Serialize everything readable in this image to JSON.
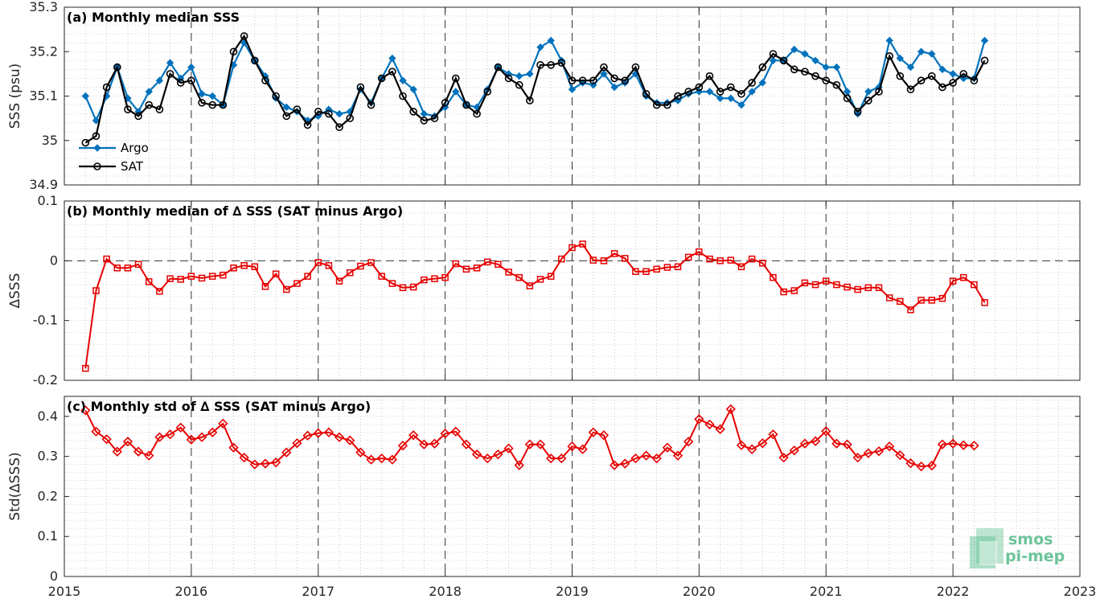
{
  "watermark": {
    "line1": "smos",
    "line2": "pi-mep",
    "color": "#6dc49a"
  },
  "x_axis": {
    "ticks": [
      2015,
      2016,
      2017,
      2018,
      2019,
      2020,
      2021,
      2022,
      2023
    ],
    "range": [
      2015,
      2023
    ]
  },
  "chart_data": [
    {
      "type": "line",
      "title": "(a) Monthly median SSS",
      "ylabel": "SSS (psu)",
      "ylim": [
        34.9,
        35.3
      ],
      "yticks": [
        34.9,
        35,
        35.1,
        35.2,
        35.3
      ],
      "ytick_labels": [
        "34.9",
        "35",
        "35.1",
        "35.2",
        "35.3"
      ],
      "zero_line": false,
      "legend": {
        "placement": "bottom-left",
        "entries": [
          "Argo",
          "SAT"
        ]
      },
      "grid": "dotted",
      "x_start": "2015-03",
      "x_step": "1 month",
      "series": [
        {
          "name": "Argo",
          "color": "#0072bd",
          "marker": "diamond-filled",
          "values": [
            35.1,
            35.045,
            35.1,
            35.165,
            35.095,
            35.065,
            35.11,
            35.135,
            35.175,
            35.14,
            35.165,
            35.105,
            35.1,
            35.08,
            35.17,
            35.22,
            35.18,
            35.145,
            35.095,
            35.075,
            35.065,
            35.045,
            35.055,
            35.07,
            35.06,
            35.065,
            35.115,
            35.085,
            35.14,
            35.185,
            35.135,
            35.115,
            35.06,
            35.055,
            35.075,
            35.11,
            35.08,
            35.075,
            35.115,
            35.165,
            35.15,
            35.145,
            35.15,
            35.21,
            35.225,
            35.18,
            35.115,
            35.13,
            35.125,
            35.15,
            35.12,
            35.13,
            35.15,
            35.1,
            35.085,
            35.085,
            35.09,
            35.105,
            35.11,
            35.11,
            35.095,
            35.095,
            35.08,
            35.11,
            35.13,
            35.18,
            35.18,
            35.205,
            35.195,
            35.18,
            35.165,
            35.165,
            35.11,
            35.06,
            35.11,
            35.12,
            35.225,
            35.185,
            35.165,
            35.2,
            35.195,
            35.16,
            35.15,
            35.14,
            35.14,
            35.225
          ]
        },
        {
          "name": "SAT",
          "color": "#000000",
          "marker": "circle-open",
          "values": [
            34.995,
            35.01,
            35.12,
            35.165,
            35.07,
            35.055,
            35.08,
            35.07,
            35.15,
            35.13,
            35.135,
            35.085,
            35.08,
            35.08,
            35.2,
            35.235,
            35.18,
            35.135,
            35.1,
            35.055,
            35.07,
            35.035,
            35.065,
            35.06,
            35.03,
            35.05,
            35.12,
            35.08,
            35.14,
            35.155,
            35.1,
            35.065,
            35.045,
            35.05,
            35.085,
            35.14,
            35.08,
            35.06,
            35.11,
            35.165,
            35.14,
            35.125,
            35.09,
            35.17,
            35.17,
            35.175,
            35.135,
            35.135,
            35.135,
            35.165,
            35.14,
            35.135,
            35.165,
            35.105,
            35.08,
            35.08,
            35.1,
            35.11,
            35.12,
            35.145,
            35.11,
            35.12,
            35.105,
            35.13,
            35.165,
            35.195,
            35.18,
            35.16,
            35.155,
            35.145,
            35.135,
            35.125,
            35.095,
            35.065,
            35.09,
            35.11,
            35.19,
            35.145,
            35.115,
            35.135,
            35.145,
            35.12,
            35.13,
            35.15,
            35.135,
            35.18
          ]
        }
      ]
    },
    {
      "type": "line",
      "title": "(b) Monthly median of ∆ SSS (SAT minus Argo)",
      "ylabel": "∆SSS",
      "ylim": [
        -0.2,
        0.1
      ],
      "yticks": [
        -0.2,
        -0.1,
        0,
        0.1
      ],
      "ytick_labels": [
        "-0.2",
        "-0.1",
        "0",
        "0.1"
      ],
      "zero_line": true,
      "grid": "dotted",
      "x_start": "2015-03",
      "x_step": "1 month",
      "series": [
        {
          "color": "#e60000",
          "marker": "square-open",
          "values": [
            -0.18,
            -0.05,
            0.003,
            -0.012,
            -0.012,
            -0.006,
            -0.035,
            -0.051,
            -0.03,
            -0.031,
            -0.026,
            -0.029,
            -0.026,
            -0.024,
            -0.012,
            -0.008,
            -0.01,
            -0.043,
            -0.022,
            -0.048,
            -0.038,
            -0.026,
            -0.003,
            -0.008,
            -0.034,
            -0.02,
            -0.009,
            -0.003,
            -0.026,
            -0.038,
            -0.045,
            -0.044,
            -0.032,
            -0.03,
            -0.028,
            -0.005,
            -0.014,
            -0.012,
            -0.002,
            -0.006,
            -0.019,
            -0.028,
            -0.042,
            -0.031,
            -0.026,
            0.003,
            0.022,
            0.028,
            0.001,
            0.0,
            0.012,
            0.004,
            -0.018,
            -0.018,
            -0.014,
            -0.011,
            -0.01,
            0.006,
            0.015,
            0.003,
            0.0,
            0.001,
            -0.01,
            0.003,
            -0.004,
            -0.028,
            -0.052,
            -0.05,
            -0.037,
            -0.04,
            -0.034,
            -0.04,
            -0.044,
            -0.048,
            -0.045,
            -0.045,
            -0.062,
            -0.068,
            -0.082,
            -0.066,
            -0.066,
            -0.063,
            -0.034,
            -0.028,
            -0.04,
            -0.07
          ]
        }
      ]
    },
    {
      "type": "line",
      "title": "(c) Monthly std of ∆ SSS (SAT minus Argo)",
      "ylabel": "Std(∆SSS)",
      "ylim": [
        0,
        0.45
      ],
      "yticks": [
        0,
        0.1,
        0.2,
        0.3,
        0.4
      ],
      "ytick_labels": [
        "0",
        "0.1",
        "0.2",
        "0.3",
        "0.4"
      ],
      "zero_line": false,
      "grid": "dotted",
      "x_start": "2015-03",
      "x_step": "1 month",
      "series": [
        {
          "color": "#e60000",
          "marker": "diamond-open",
          "values": [
            0.415,
            0.362,
            0.343,
            0.312,
            0.337,
            0.312,
            0.302,
            0.348,
            0.355,
            0.372,
            0.342,
            0.348,
            0.36,
            0.382,
            0.322,
            0.297,
            0.28,
            0.282,
            0.285,
            0.31,
            0.333,
            0.352,
            0.358,
            0.36,
            0.348,
            0.34,
            0.31,
            0.292,
            0.295,
            0.292,
            0.327,
            0.353,
            0.33,
            0.332,
            0.357,
            0.362,
            0.33,
            0.305,
            0.295,
            0.305,
            0.32,
            0.278,
            0.33,
            0.33,
            0.295,
            0.295,
            0.325,
            0.318,
            0.36,
            0.353,
            0.278,
            0.282,
            0.295,
            0.302,
            0.295,
            0.322,
            0.302,
            0.337,
            0.393,
            0.38,
            0.368,
            0.418,
            0.328,
            0.318,
            0.333,
            0.355,
            0.297,
            0.315,
            0.332,
            0.338,
            0.363,
            0.332,
            0.33,
            0.297,
            0.308,
            0.313,
            0.325,
            0.303,
            0.283,
            0.275,
            0.277,
            0.33,
            0.332,
            0.328,
            0.327
          ]
        }
      ]
    }
  ]
}
